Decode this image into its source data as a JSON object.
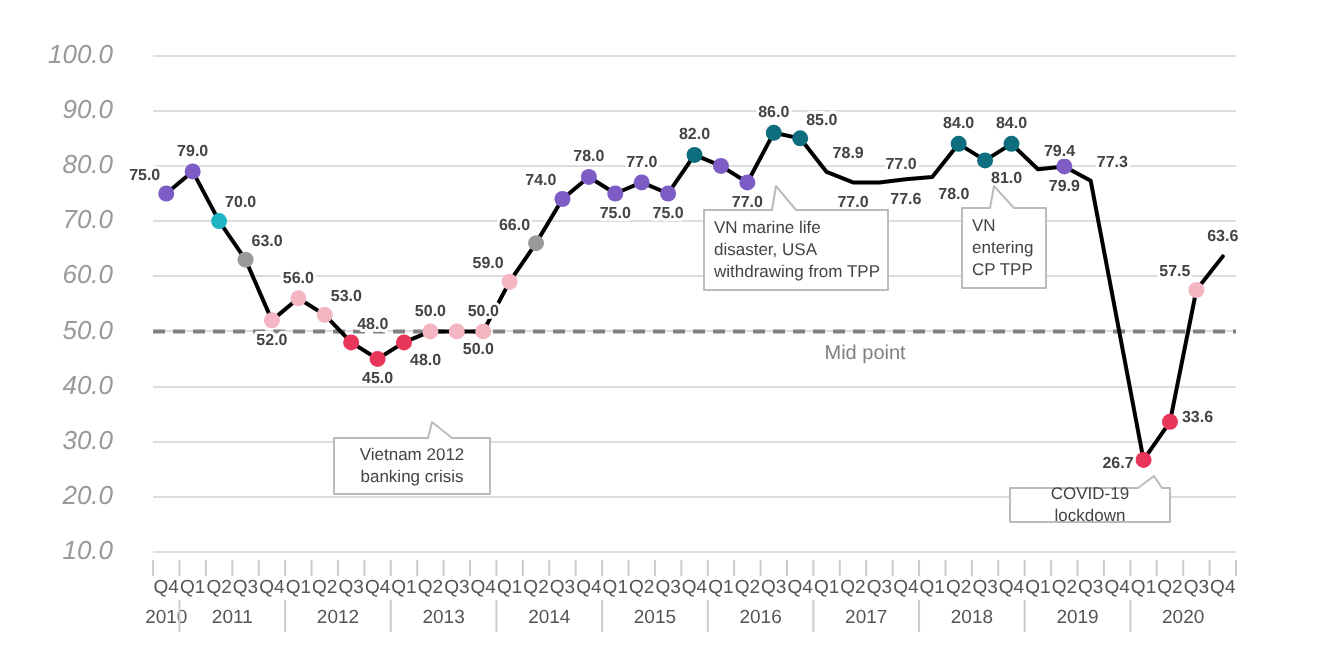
{
  "chart_data": {
    "type": "line",
    "categories": [
      "Q4",
      "Q1",
      "Q2",
      "Q3",
      "Q4",
      "Q1",
      "Q2",
      "Q3",
      "Q4",
      "Q1",
      "Q2",
      "Q3",
      "Q4",
      "Q1",
      "Q2",
      "Q3",
      "Q4",
      "Q1",
      "Q2",
      "Q3",
      "Q4",
      "Q1",
      "Q2",
      "Q3",
      "Q4",
      "Q1",
      "Q2",
      "Q3",
      "Q4",
      "Q1",
      "Q2",
      "Q3",
      "Q4",
      "Q1",
      "Q2",
      "Q3",
      "Q4",
      "Q1",
      "Q2",
      "Q3",
      "Q4"
    ],
    "series": [
      {
        "color": "#000000",
        "values": [
          75.0,
          79.0,
          70.0,
          63.0,
          52.0,
          56.0,
          53.0,
          48.0,
          45.0,
          48.0,
          50.0,
          50.0,
          50.0,
          59.0,
          66.0,
          74.0,
          78.0,
          75.0,
          77.0,
          75.0,
          82.0,
          80,
          77.0,
          86.0,
          85.0,
          78.9,
          77.0,
          77.0,
          77.6,
          78.0,
          84.0,
          81.0,
          84.0,
          79.4,
          79.9,
          77.3,
          null,
          26.7,
          33.6,
          57.5,
          63.6
        ],
        "value_labels": [
          "75.0",
          "79.0",
          "70.0",
          "63.0",
          "52.0",
          "56.0",
          "53.0",
          "48.0",
          "45.0",
          "48.0",
          "50.0",
          "50.0",
          "50.0",
          "59.0",
          "66.0",
          "74.0",
          "78.0",
          "75.0",
          "77.0",
          "75.0",
          "82.0",
          null,
          "77.0",
          "86.0",
          "85.0",
          "78.9",
          "77.0",
          "77.0",
          "77.6",
          "78.0",
          "84.0",
          "81.0",
          "84.0",
          "79.4",
          "79.9",
          "77.3",
          null,
          "26.7",
          "33.6",
          "57.5",
          "63.6"
        ],
        "colors": [
          "#7d5cc6",
          "#7d5cc6",
          "#1fb5c4",
          "#9a9a9a",
          "#f4b6c2",
          "#f4b6c2",
          "#f4b6c2",
          "#e8365a",
          "#e8365a",
          "#e8365a",
          "#f4b6c2",
          "#f4b6c2",
          "#f4b6c2",
          "#f4b6c2",
          "#9a9a9a",
          "#7d5cc6",
          "#7d5cc6",
          "#7d5cc6",
          "#7d5cc6",
          "#7d5cc6",
          "#0e6e7e",
          "#7d5cc6",
          "#7d5cc6",
          "#0e6e7e",
          "#0e6e7e",
          null,
          null,
          null,
          null,
          null,
          "#0e6e7e",
          "#0e6e7e",
          "#0e6e7e",
          null,
          "#7d5cc6",
          null,
          null,
          "#e8365a",
          "#e8365a",
          "#f4b6c2",
          null
        ]
      }
    ],
    "ylim": [
      10,
      100
    ],
    "yticks": [
      {
        "value": 10,
        "label": "10.0"
      },
      {
        "value": 20,
        "label": "20.0"
      },
      {
        "value": 30,
        "label": "30.0"
      },
      {
        "value": 40,
        "label": "40.0"
      },
      {
        "value": 50,
        "label": "50.0"
      },
      {
        "value": 60,
        "label": "60.0"
      },
      {
        "value": 70,
        "label": "70.0"
      },
      {
        "value": 80,
        "label": "80.0"
      },
      {
        "value": 90,
        "label": "90.0"
      },
      {
        "value": 100,
        "label": "100.0"
      }
    ],
    "grid": "y",
    "marker": "circle",
    "line_style": "solid",
    "ref_lines": [
      {
        "axis": "y",
        "value": 50,
        "label": "Mid point",
        "color": "#808080",
        "line_style": "dashed"
      }
    ],
    "annotations": [
      "2010",
      "2011",
      "2012",
      "2013",
      "2014",
      "2015",
      "2016",
      "2017",
      "2018",
      "2019",
      "2020",
      "Vietnam 2012 banking crisis",
      "VN marine life disaster, USA withdrawing from TPP",
      "VN entering CP TPP",
      "COVID-19 lockdown"
    ]
  }
}
